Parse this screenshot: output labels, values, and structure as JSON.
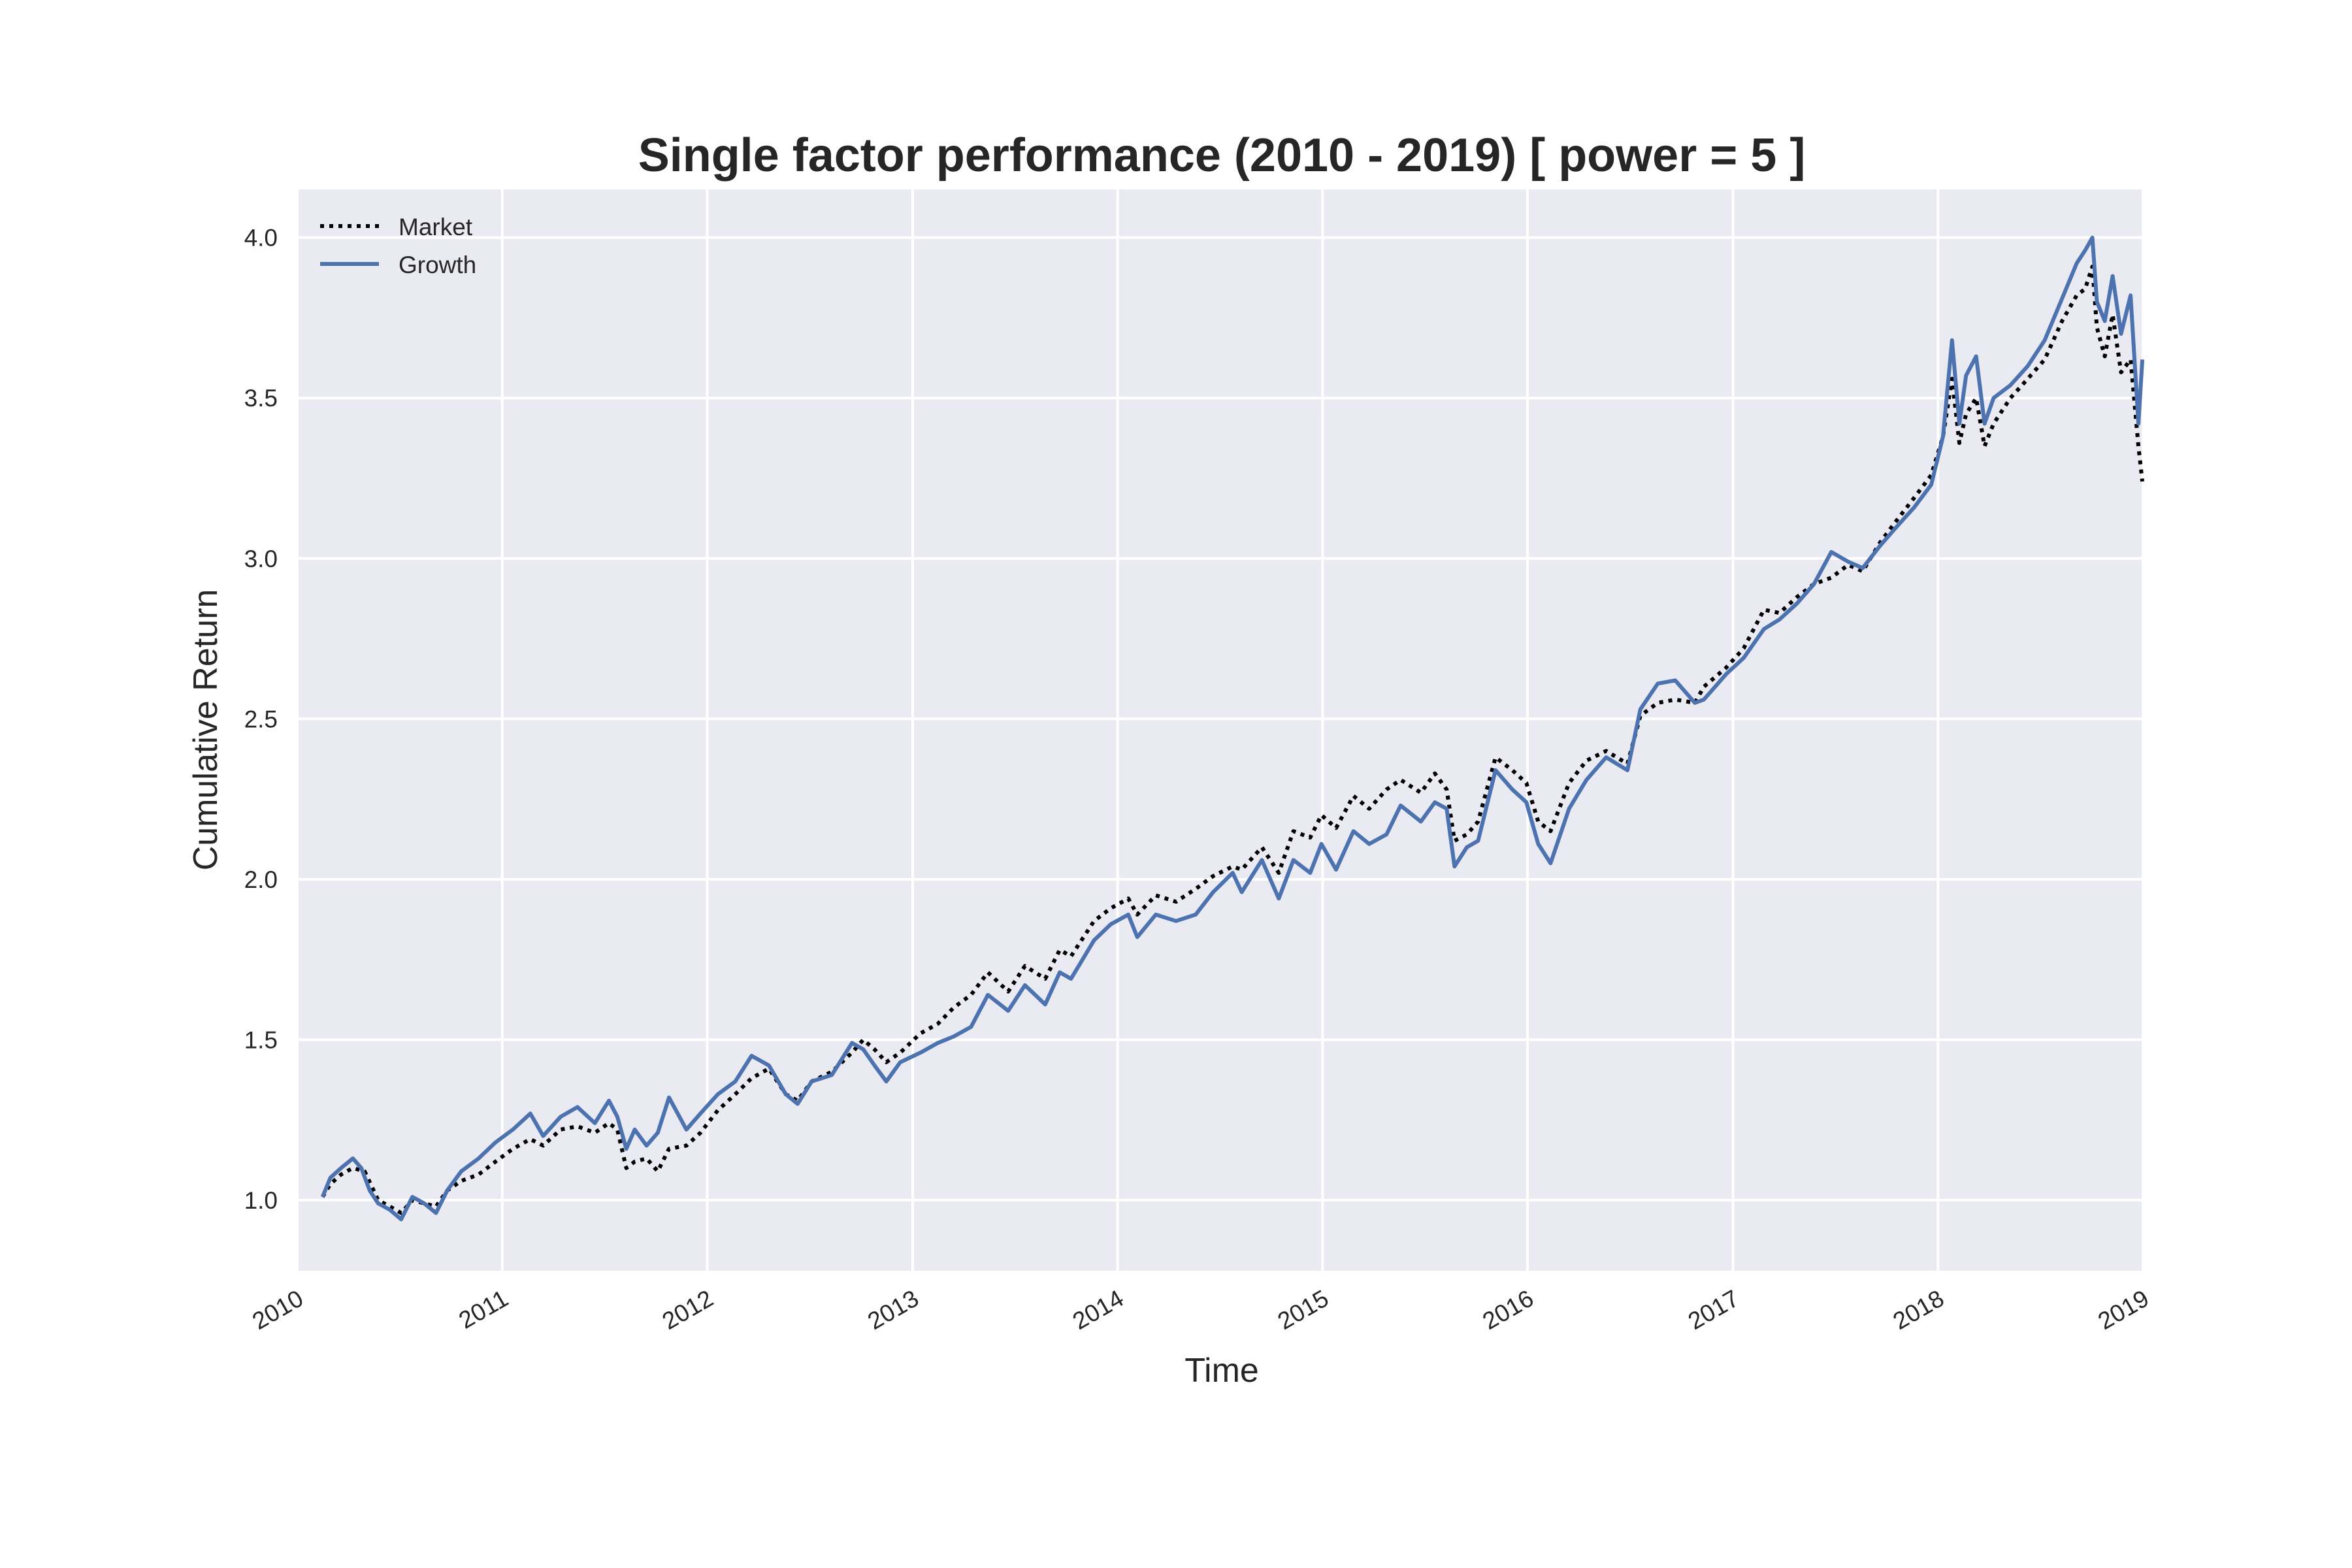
{
  "chart_data": {
    "type": "line",
    "title": "Single factor performance (2010 - 2019) [ power = 5 ]",
    "xlabel": "Time",
    "ylabel": "Cumulative Return",
    "xlim": [
      "2010-01-01",
      "2019-01-01"
    ],
    "ylim": [
      0.78,
      4.15
    ],
    "x_ticks": [
      {
        "value": "2010-01-01",
        "label": "2010"
      },
      {
        "value": "2011-01-01",
        "label": "2011"
      },
      {
        "value": "2012-01-01",
        "label": "2012"
      },
      {
        "value": "2013-01-01",
        "label": "2013"
      },
      {
        "value": "2014-01-01",
        "label": "2014"
      },
      {
        "value": "2015-01-01",
        "label": "2015"
      },
      {
        "value": "2016-01-01",
        "label": "2016"
      },
      {
        "value": "2017-01-01",
        "label": "2017"
      },
      {
        "value": "2018-01-01",
        "label": "2018"
      },
      {
        "value": "2019-01-01",
        "label": "2019"
      }
    ],
    "y_ticks": [
      {
        "value": 1.0,
        "label": "1.0"
      },
      {
        "value": 1.5,
        "label": "1.5"
      },
      {
        "value": 2.0,
        "label": "2.0"
      },
      {
        "value": 2.5,
        "label": "2.5"
      },
      {
        "value": 3.0,
        "label": "3.0"
      },
      {
        "value": 3.5,
        "label": "3.5"
      },
      {
        "value": 4.0,
        "label": "4.0"
      }
    ],
    "grid": true,
    "legend": "top-left",
    "series": [
      {
        "name": "Market",
        "color": "#000000",
        "style": "dotted",
        "points": [
          [
            "2010-02-15",
            1.01
          ],
          [
            "2010-03-01",
            1.05
          ],
          [
            "2010-03-20",
            1.08
          ],
          [
            "2010-04-10",
            1.1
          ],
          [
            "2010-05-01",
            1.09
          ],
          [
            "2010-05-25",
            1.0
          ],
          [
            "2010-06-15",
            0.98
          ],
          [
            "2010-07-05",
            0.96
          ],
          [
            "2010-07-25",
            1.0
          ],
          [
            "2010-08-15",
            0.99
          ],
          [
            "2010-09-05",
            0.98
          ],
          [
            "2010-09-25",
            1.03
          ],
          [
            "2010-10-20",
            1.06
          ],
          [
            "2010-11-20",
            1.08
          ],
          [
            "2010-12-20",
            1.12
          ],
          [
            "2011-01-20",
            1.16
          ],
          [
            "2011-02-20",
            1.19
          ],
          [
            "2011-03-15",
            1.17
          ],
          [
            "2011-04-15",
            1.22
          ],
          [
            "2011-05-15",
            1.23
          ],
          [
            "2011-06-15",
            1.21
          ],
          [
            "2011-07-10",
            1.24
          ],
          [
            "2011-07-25",
            1.22
          ],
          [
            "2011-08-10",
            1.1
          ],
          [
            "2011-08-25",
            1.12
          ],
          [
            "2011-09-15",
            1.13
          ],
          [
            "2011-10-05",
            1.09
          ],
          [
            "2011-10-25",
            1.16
          ],
          [
            "2011-11-25",
            1.17
          ],
          [
            "2011-12-20",
            1.21
          ],
          [
            "2012-01-20",
            1.28
          ],
          [
            "2012-02-20",
            1.33
          ],
          [
            "2012-03-20",
            1.38
          ],
          [
            "2012-04-20",
            1.41
          ],
          [
            "2012-05-20",
            1.33
          ],
          [
            "2012-06-10",
            1.31
          ],
          [
            "2012-07-05",
            1.37
          ],
          [
            "2012-08-10",
            1.4
          ],
          [
            "2012-09-15",
            1.46
          ],
          [
            "2012-10-05",
            1.5
          ],
          [
            "2012-10-25",
            1.47
          ],
          [
            "2012-11-15",
            1.43
          ],
          [
            "2012-12-10",
            1.46
          ],
          [
            "2013-01-15",
            1.52
          ],
          [
            "2013-02-15",
            1.55
          ],
          [
            "2013-03-15",
            1.6
          ],
          [
            "2013-04-15",
            1.64
          ],
          [
            "2013-05-15",
            1.71
          ],
          [
            "2013-06-20",
            1.65
          ],
          [
            "2013-07-20",
            1.73
          ],
          [
            "2013-08-25",
            1.69
          ],
          [
            "2013-09-20",
            1.78
          ],
          [
            "2013-10-10",
            1.76
          ],
          [
            "2013-11-20",
            1.87
          ],
          [
            "2013-12-20",
            1.91
          ],
          [
            "2014-01-20",
            1.94
          ],
          [
            "2014-02-05",
            1.89
          ],
          [
            "2014-03-10",
            1.95
          ],
          [
            "2014-04-15",
            1.93
          ],
          [
            "2014-05-20",
            1.97
          ],
          [
            "2014-06-20",
            2.01
          ],
          [
            "2014-07-25",
            2.04
          ],
          [
            "2014-08-10",
            2.03
          ],
          [
            "2014-09-15",
            2.1
          ],
          [
            "2014-10-15",
            2.02
          ],
          [
            "2014-11-10",
            2.15
          ],
          [
            "2014-12-10",
            2.13
          ],
          [
            "2014-12-30",
            2.2
          ],
          [
            "2015-01-25",
            2.16
          ],
          [
            "2015-02-25",
            2.26
          ],
          [
            "2015-03-25",
            2.22
          ],
          [
            "2015-04-25",
            2.28
          ],
          [
            "2015-05-20",
            2.31
          ],
          [
            "2015-06-25",
            2.27
          ],
          [
            "2015-07-20",
            2.33
          ],
          [
            "2015-08-10",
            2.28
          ],
          [
            "2015-08-24",
            2.12
          ],
          [
            "2015-09-15",
            2.14
          ],
          [
            "2015-10-05",
            2.18
          ],
          [
            "2015-11-05",
            2.38
          ],
          [
            "2015-12-05",
            2.34
          ],
          [
            "2015-12-30",
            2.3
          ],
          [
            "2016-01-20",
            2.18
          ],
          [
            "2016-02-11",
            2.15
          ],
          [
            "2016-03-15",
            2.3
          ],
          [
            "2016-04-15",
            2.37
          ],
          [
            "2016-05-20",
            2.4
          ],
          [
            "2016-06-27",
            2.36
          ],
          [
            "2016-07-20",
            2.51
          ],
          [
            "2016-08-20",
            2.55
          ],
          [
            "2016-09-20",
            2.56
          ],
          [
            "2016-10-25",
            2.55
          ],
          [
            "2016-11-10",
            2.6
          ],
          [
            "2016-12-20",
            2.66
          ],
          [
            "2017-01-20",
            2.72
          ],
          [
            "2017-02-25",
            2.84
          ],
          [
            "2017-03-25",
            2.83
          ],
          [
            "2017-04-25",
            2.88
          ],
          [
            "2017-05-25",
            2.92
          ],
          [
            "2017-06-25",
            2.94
          ],
          [
            "2017-07-25",
            2.98
          ],
          [
            "2017-08-20",
            2.96
          ],
          [
            "2017-09-20",
            3.05
          ],
          [
            "2017-10-20",
            3.12
          ],
          [
            "2017-11-20",
            3.19
          ],
          [
            "2017-12-20",
            3.26
          ],
          [
            "2018-01-10",
            3.38
          ],
          [
            "2018-01-26",
            3.56
          ],
          [
            "2018-02-08",
            3.36
          ],
          [
            "2018-02-20",
            3.45
          ],
          [
            "2018-03-10",
            3.5
          ],
          [
            "2018-03-25",
            3.35
          ],
          [
            "2018-04-10",
            3.42
          ],
          [
            "2018-05-10",
            3.5
          ],
          [
            "2018-06-10",
            3.56
          ],
          [
            "2018-07-10",
            3.62
          ],
          [
            "2018-08-10",
            3.74
          ],
          [
            "2018-09-05",
            3.82
          ],
          [
            "2018-09-20",
            3.84
          ],
          [
            "2018-10-03",
            3.91
          ],
          [
            "2018-10-11",
            3.72
          ],
          [
            "2018-10-25",
            3.63
          ],
          [
            "2018-11-08",
            3.76
          ],
          [
            "2018-11-23",
            3.58
          ],
          [
            "2018-12-10",
            3.62
          ],
          [
            "2018-12-24",
            3.35
          ],
          [
            "2018-12-31",
            3.24
          ]
        ]
      },
      {
        "name": "Growth",
        "color": "#4c72b0",
        "style": "solid",
        "points": [
          [
            "2010-02-15",
            1.01
          ],
          [
            "2010-03-01",
            1.07
          ],
          [
            "2010-03-20",
            1.1
          ],
          [
            "2010-04-10",
            1.13
          ],
          [
            "2010-04-25",
            1.1
          ],
          [
            "2010-05-10",
            1.03
          ],
          [
            "2010-05-25",
            0.99
          ],
          [
            "2010-06-15",
            0.97
          ],
          [
            "2010-07-05",
            0.94
          ],
          [
            "2010-07-25",
            1.01
          ],
          [
            "2010-08-15",
            0.99
          ],
          [
            "2010-09-05",
            0.96
          ],
          [
            "2010-09-25",
            1.03
          ],
          [
            "2010-10-20",
            1.09
          ],
          [
            "2010-11-20",
            1.13
          ],
          [
            "2010-12-20",
            1.18
          ],
          [
            "2011-01-20",
            1.22
          ],
          [
            "2011-02-20",
            1.27
          ],
          [
            "2011-03-15",
            1.2
          ],
          [
            "2011-04-15",
            1.26
          ],
          [
            "2011-05-15",
            1.29
          ],
          [
            "2011-06-15",
            1.24
          ],
          [
            "2011-07-10",
            1.31
          ],
          [
            "2011-07-25",
            1.26
          ],
          [
            "2011-08-10",
            1.16
          ],
          [
            "2011-08-25",
            1.22
          ],
          [
            "2011-09-15",
            1.17
          ],
          [
            "2011-10-05",
            1.21
          ],
          [
            "2011-10-25",
            1.32
          ],
          [
            "2011-11-25",
            1.22
          ],
          [
            "2011-12-20",
            1.27
          ],
          [
            "2012-01-20",
            1.33
          ],
          [
            "2012-02-20",
            1.37
          ],
          [
            "2012-03-20",
            1.45
          ],
          [
            "2012-04-20",
            1.42
          ],
          [
            "2012-05-20",
            1.33
          ],
          [
            "2012-06-10",
            1.3
          ],
          [
            "2012-07-05",
            1.37
          ],
          [
            "2012-08-10",
            1.39
          ],
          [
            "2012-09-15",
            1.49
          ],
          [
            "2012-10-05",
            1.47
          ],
          [
            "2012-10-25",
            1.42
          ],
          [
            "2012-11-15",
            1.37
          ],
          [
            "2012-12-10",
            1.43
          ],
          [
            "2013-01-15",
            1.46
          ],
          [
            "2013-02-15",
            1.49
          ],
          [
            "2013-03-15",
            1.51
          ],
          [
            "2013-04-15",
            1.54
          ],
          [
            "2013-05-15",
            1.64
          ],
          [
            "2013-06-20",
            1.59
          ],
          [
            "2013-07-20",
            1.67
          ],
          [
            "2013-08-25",
            1.61
          ],
          [
            "2013-09-20",
            1.71
          ],
          [
            "2013-10-10",
            1.69
          ],
          [
            "2013-11-20",
            1.81
          ],
          [
            "2013-12-20",
            1.86
          ],
          [
            "2014-01-20",
            1.89
          ],
          [
            "2014-02-05",
            1.82
          ],
          [
            "2014-03-10",
            1.89
          ],
          [
            "2014-04-15",
            1.87
          ],
          [
            "2014-05-20",
            1.89
          ],
          [
            "2014-06-20",
            1.96
          ],
          [
            "2014-07-25",
            2.02
          ],
          [
            "2014-08-10",
            1.96
          ],
          [
            "2014-09-15",
            2.06
          ],
          [
            "2014-10-15",
            1.94
          ],
          [
            "2014-11-10",
            2.06
          ],
          [
            "2014-12-10",
            2.02
          ],
          [
            "2014-12-30",
            2.11
          ],
          [
            "2015-01-25",
            2.03
          ],
          [
            "2015-02-25",
            2.15
          ],
          [
            "2015-03-25",
            2.11
          ],
          [
            "2015-04-25",
            2.14
          ],
          [
            "2015-05-20",
            2.23
          ],
          [
            "2015-06-25",
            2.18
          ],
          [
            "2015-07-20",
            2.24
          ],
          [
            "2015-08-10",
            2.22
          ],
          [
            "2015-08-24",
            2.04
          ],
          [
            "2015-09-15",
            2.1
          ],
          [
            "2015-10-05",
            2.12
          ],
          [
            "2015-11-05",
            2.34
          ],
          [
            "2015-12-05",
            2.28
          ],
          [
            "2015-12-30",
            2.24
          ],
          [
            "2016-01-20",
            2.11
          ],
          [
            "2016-02-11",
            2.05
          ],
          [
            "2016-03-15",
            2.22
          ],
          [
            "2016-04-15",
            2.31
          ],
          [
            "2016-05-20",
            2.38
          ],
          [
            "2016-06-27",
            2.34
          ],
          [
            "2016-07-20",
            2.53
          ],
          [
            "2016-08-20",
            2.61
          ],
          [
            "2016-09-20",
            2.62
          ],
          [
            "2016-10-25",
            2.55
          ],
          [
            "2016-11-10",
            2.56
          ],
          [
            "2016-12-20",
            2.64
          ],
          [
            "2017-01-20",
            2.69
          ],
          [
            "2017-02-25",
            2.78
          ],
          [
            "2017-03-25",
            2.81
          ],
          [
            "2017-04-25",
            2.86
          ],
          [
            "2017-05-25",
            2.92
          ],
          [
            "2017-06-25",
            3.02
          ],
          [
            "2017-07-25",
            2.99
          ],
          [
            "2017-08-20",
            2.97
          ],
          [
            "2017-09-20",
            3.04
          ],
          [
            "2017-10-20",
            3.1
          ],
          [
            "2017-11-20",
            3.16
          ],
          [
            "2017-12-20",
            3.23
          ],
          [
            "2018-01-10",
            3.38
          ],
          [
            "2018-01-26",
            3.68
          ],
          [
            "2018-02-08",
            3.42
          ],
          [
            "2018-02-20",
            3.57
          ],
          [
            "2018-03-10",
            3.63
          ],
          [
            "2018-03-25",
            3.42
          ],
          [
            "2018-04-10",
            3.5
          ],
          [
            "2018-05-10",
            3.54
          ],
          [
            "2018-06-10",
            3.6
          ],
          [
            "2018-07-10",
            3.68
          ],
          [
            "2018-08-10",
            3.81
          ],
          [
            "2018-09-05",
            3.92
          ],
          [
            "2018-09-20",
            3.96
          ],
          [
            "2018-10-03",
            4.0
          ],
          [
            "2018-10-11",
            3.8
          ],
          [
            "2018-10-25",
            3.74
          ],
          [
            "2018-11-08",
            3.88
          ],
          [
            "2018-11-23",
            3.7
          ],
          [
            "2018-12-10",
            3.82
          ],
          [
            "2018-12-24",
            3.42
          ],
          [
            "2018-12-31",
            3.62
          ]
        ]
      }
    ]
  }
}
